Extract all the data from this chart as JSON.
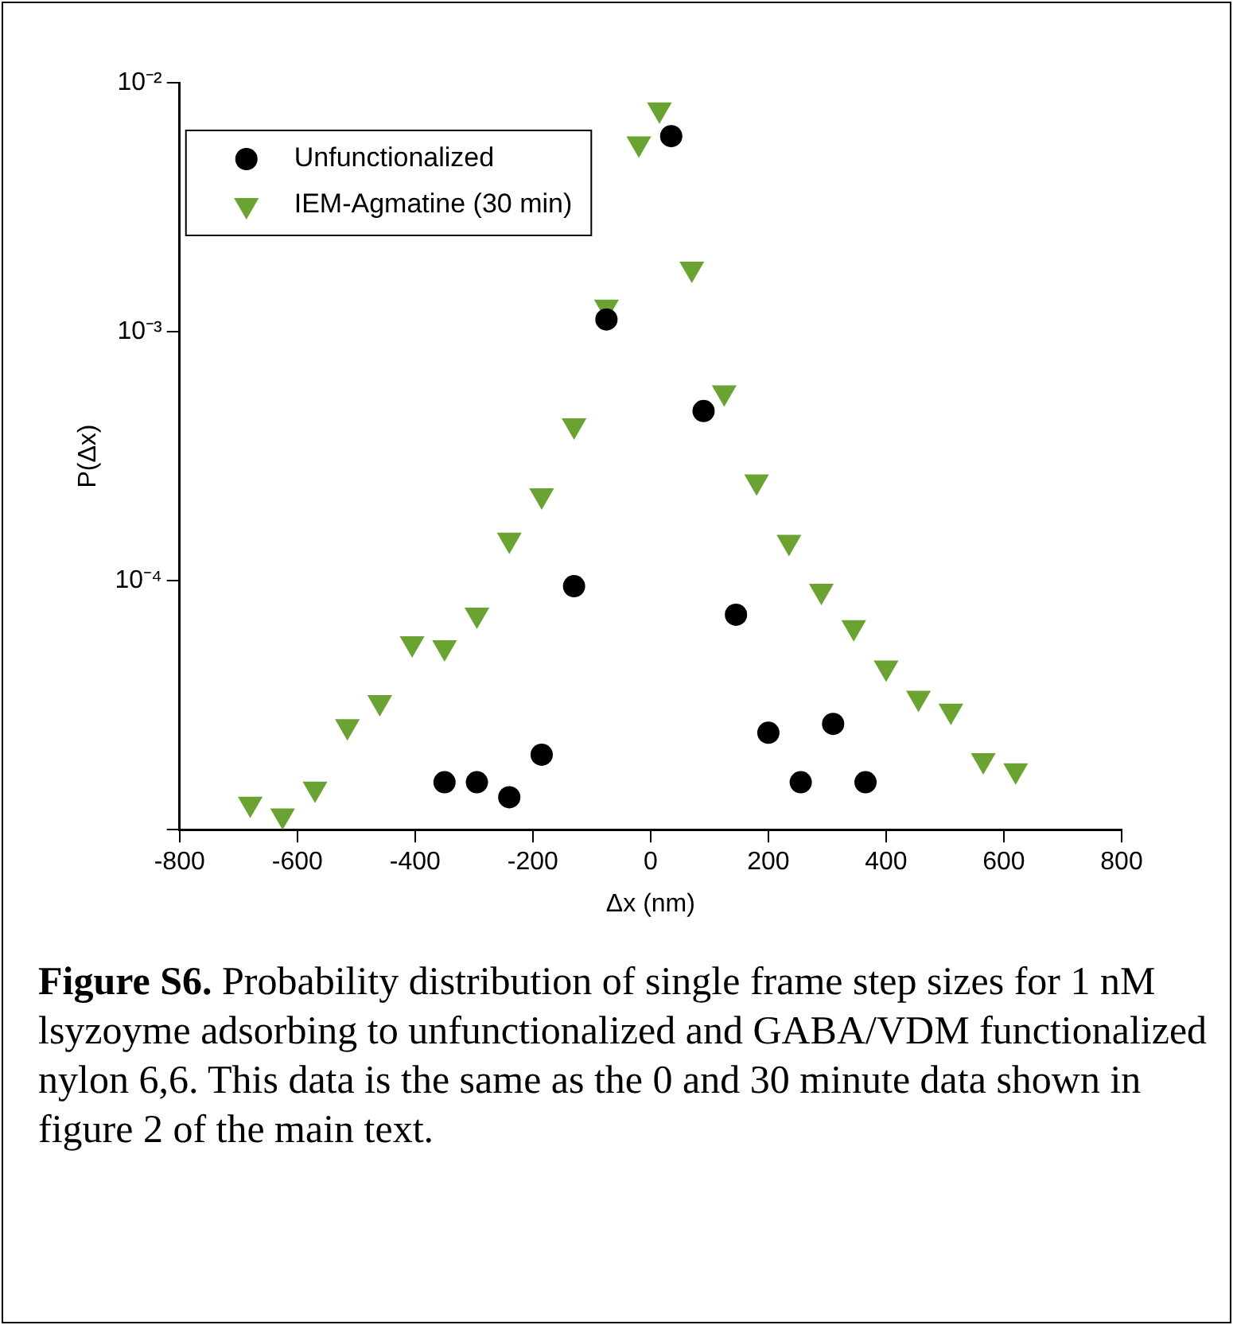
{
  "chart_data": {
    "type": "scatter",
    "xlabel": "Δx (nm)",
    "ylabel": "P(Δx)",
    "log": "y",
    "grid": false,
    "legend": "top left",
    "xlim": [
      -800,
      800
    ],
    "xticks": [
      -800,
      -600,
      -400,
      -200,
      0,
      200,
      400,
      600,
      800
    ],
    "ylim": [
      1e-05,
      0.01
    ],
    "yticks": [
      {
        "value": 1e-05,
        "label": null
      },
      {
        "value": 0.0001,
        "label": "10⁻⁴"
      },
      {
        "value": 0.001,
        "label": "10⁻³"
      },
      {
        "value": 0.01,
        "label": "10⁻²"
      }
    ],
    "series": [
      {
        "name": "Unfunctionalized",
        "color": "#000000",
        "marker": "circle",
        "x": [
          -350,
          -295,
          -240,
          -185,
          -130,
          -75,
          35,
          90,
          145,
          200,
          255,
          310,
          365
        ],
        "values": [
          1.55e-05,
          1.55e-05,
          1.35e-05,
          2e-05,
          9.5e-05,
          0.00112,
          0.0061,
          0.00048,
          7.3e-05,
          2.45e-05,
          1.55e-05,
          2.66e-05,
          1.55e-05
        ]
      },
      {
        "name": "IEM-Agmatine (30 min)",
        "color": "#6aa332",
        "marker": "triangle",
        "x": [
          -680,
          -625,
          -570,
          -515,
          -460,
          -405,
          -350,
          -295,
          -240,
          -185,
          -130,
          -75,
          -20,
          15,
          70,
          125,
          180,
          235,
          290,
          345,
          400,
          455,
          510,
          565,
          620
        ],
        "values": [
          1.27e-05,
          1.14e-05,
          1.46e-05,
          2.6e-05,
          3.25e-05,
          5.6e-05,
          5.4e-05,
          7.3e-05,
          0.000146,
          0.00022,
          0.00042,
          0.00126,
          0.0057,
          0.0078,
          0.00179,
          0.00057,
          0.00025,
          0.000143,
          9.1e-05,
          6.5e-05,
          4.47e-05,
          3.38e-05,
          3e-05,
          1.9e-05,
          1.73e-05
        ]
      }
    ],
    "annotations": [
      "Figure S6.",
      "Probability distribution of single frame step sizes for 1 nM lsyzoyme adsorbing to unfunctionalized and GABA/VDM functionalized nylon 6,6. This data is the same as the 0 and 30 minute data shown in figure 2 of the main text."
    ]
  }
}
